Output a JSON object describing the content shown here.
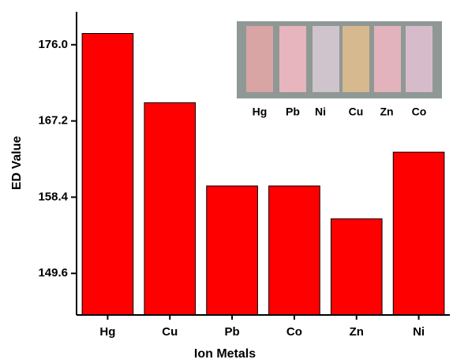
{
  "chart_data": {
    "type": "bar",
    "x_label": "Ion Metals",
    "y_label": "ED Value",
    "categories": [
      "Hg",
      "Cu",
      "Pb",
      "Co",
      "Zn",
      "Ni"
    ],
    "values": [
      177.3,
      169.3,
      159.7,
      159.7,
      155.9,
      163.6
    ],
    "color": "#ff0000",
    "ylim": [
      144.8,
      179.8
    ],
    "yticks": [
      149.6,
      158.4,
      167.2,
      {
        "value": 176,
        "label": "176.0"
      }
    ],
    "inset_labels": [
      "Hg",
      "Pb",
      "Ni",
      "Cu",
      "Zn",
      "Co"
    ]
  }
}
